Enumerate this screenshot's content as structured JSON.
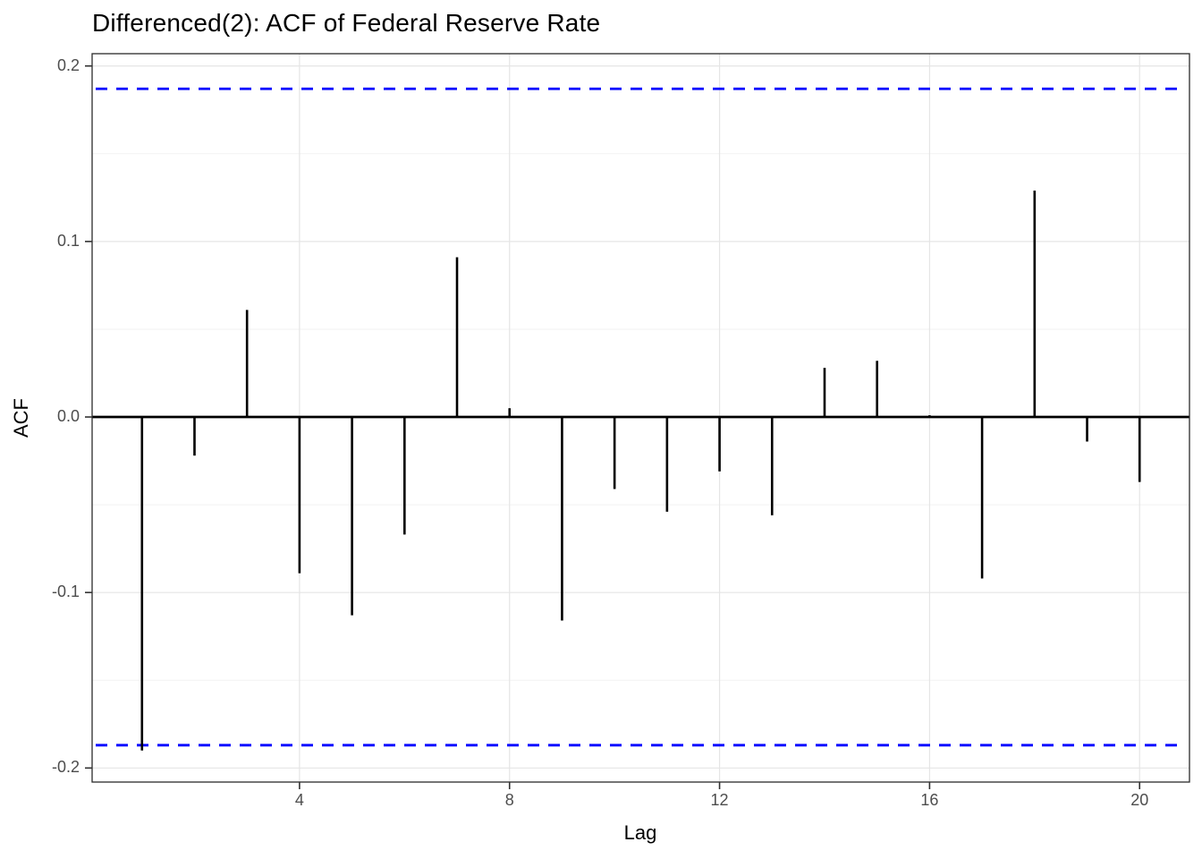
{
  "chart_data": {
    "type": "bar",
    "subtype": "acf-stem-plot",
    "title": "Differenced(2): ACF of Federal Reserve Rate",
    "xlabel": "Lag",
    "ylabel": "ACF",
    "x": [
      1,
      2,
      3,
      4,
      5,
      6,
      7,
      8,
      9,
      10,
      11,
      12,
      13,
      14,
      15,
      16,
      17,
      18,
      19,
      20
    ],
    "values": [
      -0.19,
      -0.022,
      0.061,
      -0.089,
      -0.113,
      -0.067,
      0.091,
      0.005,
      -0.116,
      -0.041,
      -0.054,
      -0.031,
      -0.056,
      0.028,
      0.032,
      0.001,
      -0.092,
      0.129,
      -0.014,
      -0.037
    ],
    "ci_upper": 0.187,
    "ci_lower": -0.187,
    "ci_line_style": "dashed",
    "axes": {
      "xlim": [
        0.05,
        20.95
      ],
      "ylim": [
        -0.208,
        0.207
      ],
      "x_ticks": [
        {
          "value": 4,
          "label": "4"
        },
        {
          "value": 8,
          "label": "8"
        },
        {
          "value": 12,
          "label": "12"
        },
        {
          "value": 16,
          "label": "16"
        },
        {
          "value": 20,
          "label": "20"
        }
      ],
      "y_ticks": [
        {
          "value": 0.2,
          "label": "0.2"
        },
        {
          "value": 0.1,
          "label": "0.1"
        },
        {
          "value": 0.0,
          "label": "0.0"
        },
        {
          "value": -0.1,
          "label": "-0.1"
        },
        {
          "value": -0.2,
          "label": "-0.2"
        }
      ],
      "y_minor": [
        0.15,
        0.05,
        -0.05,
        -0.15
      ],
      "grid": "on",
      "legend": "none"
    },
    "colors": {
      "bar": "#000000",
      "zero_line": "#000000",
      "ci_line": "#0000FF",
      "grid_major": "#e5e5e5",
      "grid_minor": "#f2f2f2",
      "panel_border": "#2b2b2b",
      "tick_mark": "#333333",
      "tick_label": "#4d4d4d",
      "text": "#000000",
      "background": "#ffffff"
    }
  }
}
